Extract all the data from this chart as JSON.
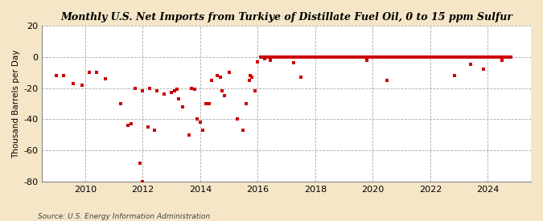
{
  "title": "Monthly U.S. Net Imports from Turkiye of Distillate Fuel Oil, 0 to 15 ppm Sulfur",
  "ylabel": "Thousand Barrels per Day",
  "source": "Source: U.S. Energy Information Administration",
  "fig_background": "#f5e6c8",
  "plot_background": "#ffffff",
  "marker_color": "#cc0000",
  "ylim": [
    -80,
    20
  ],
  "yticks": [
    -80,
    -60,
    -40,
    -20,
    0,
    20
  ],
  "xlim_start": 2008.5,
  "xlim_end": 2025.5,
  "data": [
    [
      2009.0,
      -12
    ],
    [
      2009.25,
      -12
    ],
    [
      2009.6,
      -17
    ],
    [
      2009.9,
      -18
    ],
    [
      2010.15,
      -10
    ],
    [
      2010.4,
      -10
    ],
    [
      2010.7,
      -14
    ],
    [
      2011.25,
      -30
    ],
    [
      2011.5,
      -44
    ],
    [
      2011.6,
      -43
    ],
    [
      2011.9,
      -68
    ],
    [
      2012.0,
      -80
    ],
    [
      2012.2,
      -45
    ],
    [
      2012.4,
      -47
    ],
    [
      2011.75,
      -20
    ],
    [
      2012.0,
      -22
    ],
    [
      2012.25,
      -20
    ],
    [
      2012.5,
      -22
    ],
    [
      2012.75,
      -24
    ],
    [
      2013.0,
      -23
    ],
    [
      2013.1,
      -22
    ],
    [
      2013.2,
      -21
    ],
    [
      2013.25,
      -27
    ],
    [
      2013.4,
      -32
    ],
    [
      2013.6,
      -50
    ],
    [
      2013.7,
      -20
    ],
    [
      2013.8,
      -21
    ],
    [
      2013.9,
      -40
    ],
    [
      2014.0,
      -42
    ],
    [
      2014.1,
      -47
    ],
    [
      2014.2,
      -30
    ],
    [
      2014.3,
      -30
    ],
    [
      2014.4,
      -15
    ],
    [
      2014.6,
      -12
    ],
    [
      2014.7,
      -13
    ],
    [
      2014.75,
      -22
    ],
    [
      2014.85,
      -25
    ],
    [
      2015.0,
      -10
    ],
    [
      2015.3,
      -40
    ],
    [
      2015.5,
      -47
    ],
    [
      2015.6,
      -30
    ],
    [
      2015.7,
      -15
    ],
    [
      2015.75,
      -12
    ],
    [
      2015.8,
      -13
    ],
    [
      2015.9,
      -22
    ],
    [
      2016.0,
      -3
    ],
    [
      2016.1,
      0
    ],
    [
      2016.2,
      0
    ],
    [
      2016.25,
      -1
    ],
    [
      2016.3,
      0
    ],
    [
      2016.35,
      0
    ],
    [
      2016.4,
      0
    ],
    [
      2016.45,
      -2
    ],
    [
      2016.5,
      0
    ],
    [
      2016.55,
      0
    ],
    [
      2016.6,
      0
    ],
    [
      2016.65,
      0
    ],
    [
      2016.7,
      0
    ],
    [
      2016.75,
      0
    ],
    [
      2016.8,
      0
    ],
    [
      2016.85,
      0
    ],
    [
      2016.9,
      0
    ],
    [
      2016.95,
      0
    ],
    [
      2017.0,
      0
    ],
    [
      2017.05,
      0
    ],
    [
      2017.1,
      0
    ],
    [
      2017.15,
      0
    ],
    [
      2017.2,
      0
    ],
    [
      2017.25,
      -4
    ],
    [
      2017.3,
      0
    ],
    [
      2017.35,
      0
    ],
    [
      2017.4,
      0
    ],
    [
      2017.45,
      0
    ],
    [
      2017.5,
      -13
    ],
    [
      2017.55,
      0
    ],
    [
      2017.6,
      0
    ],
    [
      2017.65,
      0
    ],
    [
      2017.7,
      0
    ],
    [
      2017.75,
      0
    ],
    [
      2017.8,
      0
    ],
    [
      2017.85,
      0
    ],
    [
      2017.9,
      0
    ],
    [
      2017.95,
      0
    ],
    [
      2018.0,
      0
    ],
    [
      2018.05,
      0
    ],
    [
      2018.1,
      0
    ],
    [
      2018.15,
      0
    ],
    [
      2018.2,
      0
    ],
    [
      2018.25,
      0
    ],
    [
      2018.3,
      0
    ],
    [
      2018.35,
      0
    ],
    [
      2018.4,
      0
    ],
    [
      2018.45,
      0
    ],
    [
      2018.5,
      0
    ],
    [
      2018.55,
      0
    ],
    [
      2018.6,
      0
    ],
    [
      2018.65,
      0
    ],
    [
      2018.7,
      0
    ],
    [
      2018.75,
      0
    ],
    [
      2018.8,
      0
    ],
    [
      2018.85,
      0
    ],
    [
      2018.9,
      0
    ],
    [
      2018.95,
      0
    ],
    [
      2019.0,
      0
    ],
    [
      2019.05,
      0
    ],
    [
      2019.1,
      0
    ],
    [
      2019.15,
      0
    ],
    [
      2019.2,
      0
    ],
    [
      2019.25,
      0
    ],
    [
      2019.3,
      0
    ],
    [
      2019.35,
      0
    ],
    [
      2019.4,
      0
    ],
    [
      2019.45,
      0
    ],
    [
      2019.5,
      0
    ],
    [
      2019.55,
      0
    ],
    [
      2019.6,
      0
    ],
    [
      2019.65,
      0
    ],
    [
      2019.7,
      0
    ],
    [
      2019.75,
      0
    ],
    [
      2019.8,
      -2
    ],
    [
      2019.85,
      0
    ],
    [
      2019.9,
      0
    ],
    [
      2019.95,
      0
    ],
    [
      2020.0,
      0
    ],
    [
      2020.05,
      0
    ],
    [
      2020.1,
      0
    ],
    [
      2020.15,
      0
    ],
    [
      2020.2,
      0
    ],
    [
      2020.25,
      0
    ],
    [
      2020.3,
      0
    ],
    [
      2020.35,
      0
    ],
    [
      2020.4,
      0
    ],
    [
      2020.45,
      0
    ],
    [
      2020.5,
      -15
    ],
    [
      2020.55,
      0
    ],
    [
      2020.6,
      0
    ],
    [
      2020.65,
      0
    ],
    [
      2020.7,
      0
    ],
    [
      2020.75,
      0
    ],
    [
      2020.8,
      0
    ],
    [
      2020.85,
      0
    ],
    [
      2020.9,
      0
    ],
    [
      2020.95,
      0
    ],
    [
      2021.0,
      0
    ],
    [
      2021.05,
      0
    ],
    [
      2021.1,
      0
    ],
    [
      2021.15,
      0
    ],
    [
      2021.2,
      0
    ],
    [
      2021.25,
      0
    ],
    [
      2021.3,
      0
    ],
    [
      2021.35,
      0
    ],
    [
      2021.4,
      0
    ],
    [
      2021.45,
      0
    ],
    [
      2021.5,
      0
    ],
    [
      2021.55,
      0
    ],
    [
      2021.6,
      0
    ],
    [
      2021.65,
      0
    ],
    [
      2021.7,
      0
    ],
    [
      2021.75,
      0
    ],
    [
      2021.8,
      0
    ],
    [
      2021.85,
      0
    ],
    [
      2021.9,
      0
    ],
    [
      2021.95,
      0
    ],
    [
      2022.0,
      0
    ],
    [
      2022.05,
      0
    ],
    [
      2022.1,
      0
    ],
    [
      2022.15,
      0
    ],
    [
      2022.2,
      0
    ],
    [
      2022.25,
      0
    ],
    [
      2022.3,
      0
    ],
    [
      2022.35,
      0
    ],
    [
      2022.4,
      0
    ],
    [
      2022.45,
      0
    ],
    [
      2022.5,
      0
    ],
    [
      2022.55,
      0
    ],
    [
      2022.6,
      0
    ],
    [
      2022.65,
      0
    ],
    [
      2022.7,
      0
    ],
    [
      2022.75,
      0
    ],
    [
      2022.8,
      0
    ],
    [
      2022.85,
      -12
    ],
    [
      2022.9,
      0
    ],
    [
      2022.95,
      0
    ],
    [
      2023.0,
      0
    ],
    [
      2023.05,
      0
    ],
    [
      2023.1,
      0
    ],
    [
      2023.15,
      0
    ],
    [
      2023.2,
      0
    ],
    [
      2023.25,
      0
    ],
    [
      2023.3,
      0
    ],
    [
      2023.35,
      0
    ],
    [
      2023.4,
      -5
    ],
    [
      2023.45,
      0
    ],
    [
      2023.5,
      0
    ],
    [
      2023.55,
      0
    ],
    [
      2023.6,
      0
    ],
    [
      2023.65,
      0
    ],
    [
      2023.7,
      0
    ],
    [
      2023.75,
      0
    ],
    [
      2023.8,
      0
    ],
    [
      2023.85,
      -8
    ],
    [
      2023.9,
      0
    ],
    [
      2023.95,
      0
    ],
    [
      2024.0,
      0
    ],
    [
      2024.05,
      0
    ],
    [
      2024.1,
      0
    ],
    [
      2024.15,
      0
    ],
    [
      2024.2,
      0
    ],
    [
      2024.25,
      0
    ],
    [
      2024.3,
      0
    ],
    [
      2024.35,
      0
    ],
    [
      2024.4,
      0
    ],
    [
      2024.45,
      0
    ],
    [
      2024.5,
      -2
    ],
    [
      2024.55,
      0
    ],
    [
      2024.6,
      0
    ],
    [
      2024.65,
      0
    ],
    [
      2024.7,
      0
    ],
    [
      2024.75,
      0
    ],
    [
      2024.8,
      0
    ]
  ]
}
